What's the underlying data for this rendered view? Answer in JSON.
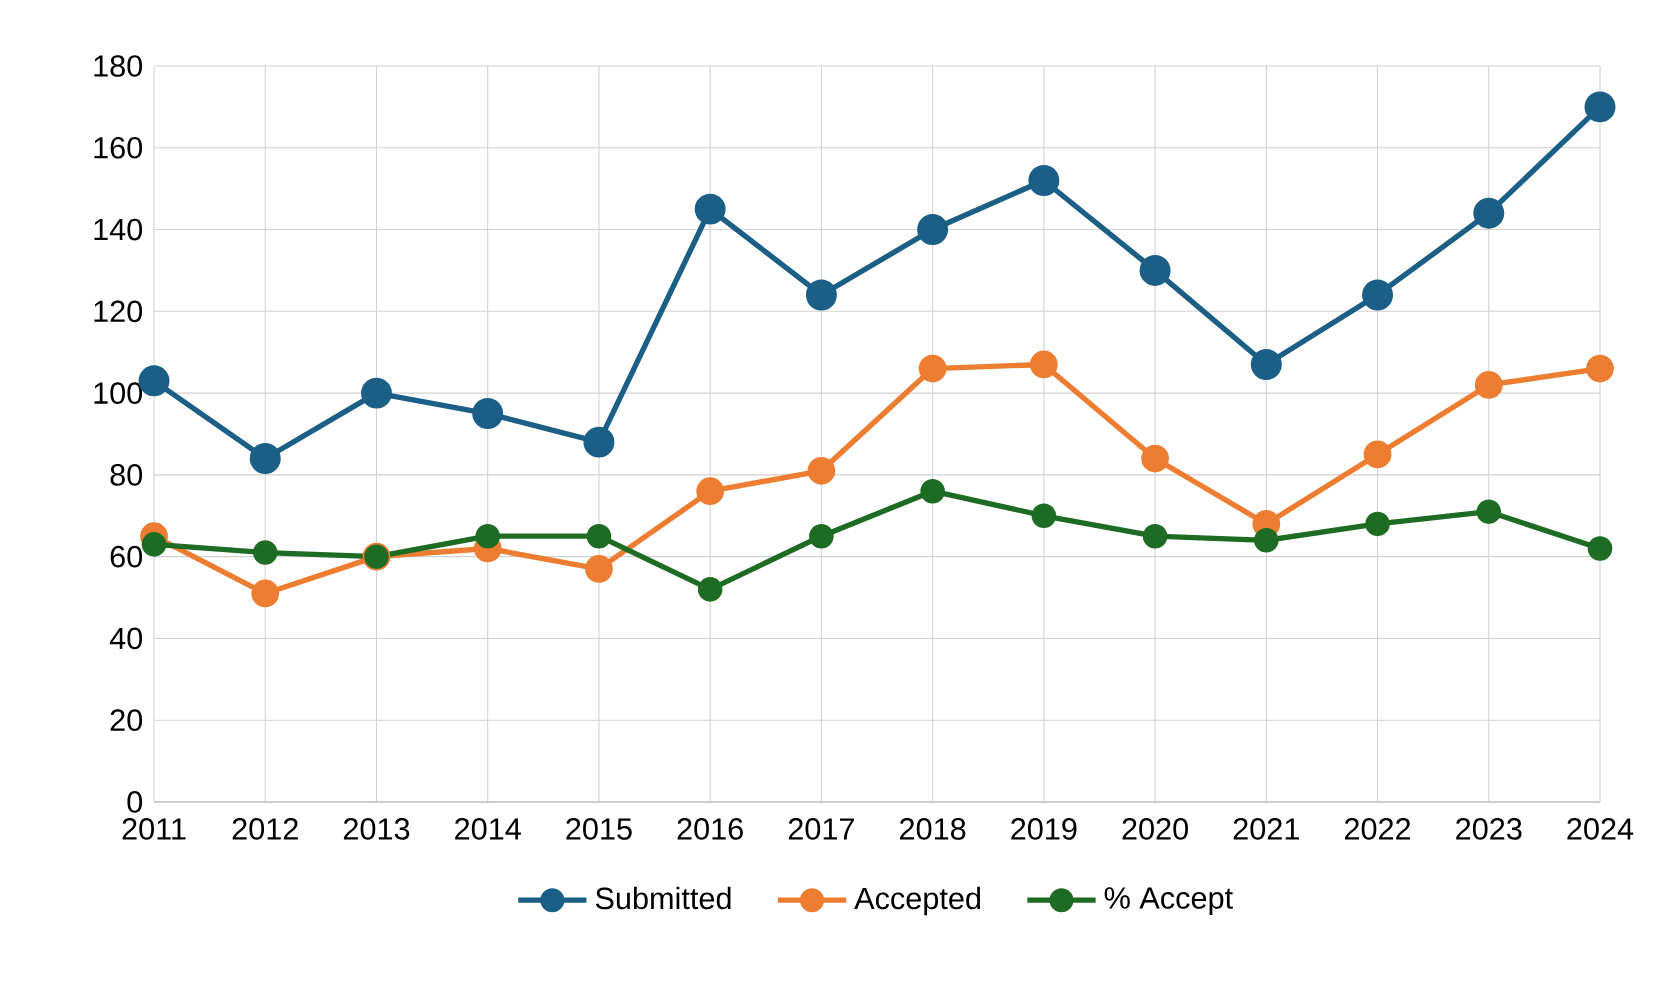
{
  "chart_data": {
    "type": "line",
    "categories": [
      "2011",
      "2012",
      "2013",
      "2014",
      "2015",
      "2016",
      "2017",
      "2018",
      "2019",
      "2020",
      "2021",
      "2022",
      "2023",
      "2024"
    ],
    "series": [
      {
        "name": "Submitted",
        "color": "#1b5e86",
        "values": [
          103,
          84,
          100,
          95,
          88,
          145,
          124,
          140,
          152,
          130,
          107,
          124,
          144,
          170
        ]
      },
      {
        "name": "Accepted",
        "color": "#ed7d31",
        "values": [
          65,
          51,
          60,
          62,
          57,
          76,
          81,
          106,
          107,
          84,
          68,
          85,
          102,
          106
        ]
      },
      {
        "name": "% Accept",
        "color": "#1e6b24",
        "values": [
          63,
          61,
          60,
          65,
          65,
          52,
          65,
          76,
          70,
          65,
          64,
          68,
          71,
          62
        ]
      }
    ],
    "ylim": [
      0,
      180
    ],
    "yticks": [
      0,
      20,
      40,
      60,
      80,
      100,
      120,
      140,
      160,
      180
    ],
    "grid": true,
    "legend": "bottom",
    "marker": "circle",
    "line_style": "solid"
  }
}
